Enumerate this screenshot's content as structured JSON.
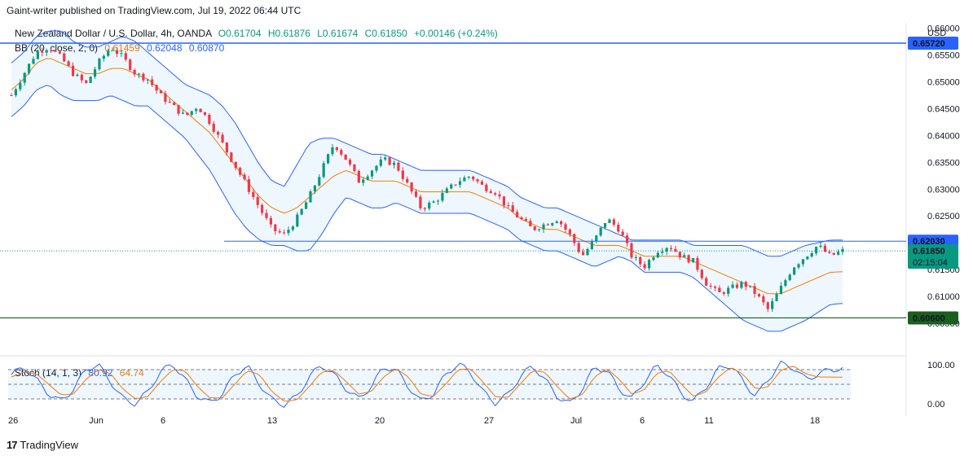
{
  "header": {
    "published": "Gaint-writer published on TradingView.com, Jul 19, 2022 06:44 UTC"
  },
  "symbol_line": {
    "name": "New Zealand Dollar / U.S. Dollar, 4h, OANDA",
    "open": "O0.61704",
    "high": "H0.61876",
    "low": "L0.61674",
    "close": "C0.61850",
    "change": "+0.00146 (+0.24%)"
  },
  "bb_line": {
    "label": "BB (20, close, 2, 0)",
    "basis": "0.61459",
    "upper": "0.62048",
    "lower": "0.60870"
  },
  "stoch_line": {
    "label": "Stoch (14, 1, 3)",
    "k": "80.92",
    "d": "64.74"
  },
  "footer": {
    "brand": "TradingView",
    "logo": "17"
  },
  "colors": {
    "up": "#089981",
    "down": "#f23645",
    "bb_band": "#2962ff",
    "bb_basis": "#f57c00",
    "level_line": "#2962ff",
    "support_line": "#1b5e20",
    "price_tag": "#089981"
  },
  "chart_data": [
    {
      "type": "candlestick",
      "title": "New Zealand Dollar / U.S. Dollar, 4h, OANDA",
      "currency": "USD",
      "ylim": [
        0.6,
        0.661
      ],
      "y_ticks": [
        "0.66000",
        "0.65500",
        "0.65000",
        "0.64500",
        "0.64000",
        "0.63500",
        "0.63000",
        "0.62500",
        "0.61500",
        "0.61000",
        "0.60500"
      ],
      "x_tick_labels": [
        "26",
        "Jun",
        "6",
        "13",
        "20",
        "27",
        "Jul",
        "6",
        "11",
        "18"
      ],
      "levels": [
        {
          "value": 0.6572,
          "label": "0.65720",
          "color": "#2962ff"
        },
        {
          "value": 0.6203,
          "label": "0.62030",
          "color": "#2962ff"
        },
        {
          "value": 0.606,
          "label": "0.60600",
          "color": "#1b5e20"
        }
      ],
      "last_price": {
        "value": 0.6185,
        "label": "0.61850",
        "countdown": "02:15:04"
      },
      "close_path": [
        0.6475,
        0.6515,
        0.6555,
        0.6565,
        0.6545,
        0.6515,
        0.6495,
        0.6535,
        0.6565,
        0.6545,
        0.6515,
        0.6505,
        0.6475,
        0.6455,
        0.6435,
        0.6455,
        0.6425,
        0.6385,
        0.6345,
        0.6305,
        0.6265,
        0.6225,
        0.6215,
        0.6245,
        0.6285,
        0.6335,
        0.6385,
        0.6355,
        0.6315,
        0.6335,
        0.6355,
        0.6345,
        0.6305,
        0.6265,
        0.6275,
        0.6295,
        0.6315,
        0.6325,
        0.6305,
        0.6295,
        0.6265,
        0.6245,
        0.6225,
        0.6235,
        0.6245,
        0.6215,
        0.6175,
        0.6205,
        0.6245,
        0.6225,
        0.6175,
        0.6155,
        0.6185,
        0.6195,
        0.6175,
        0.6165,
        0.6125,
        0.6105,
        0.6115,
        0.6125,
        0.6105,
        0.6075,
        0.6115,
        0.6155,
        0.6175,
        0.6195,
        0.6175,
        0.6185
      ],
      "basis_path": [
        0.6485,
        0.6505,
        0.6535,
        0.6545,
        0.6535,
        0.6525,
        0.6515,
        0.6515,
        0.6525,
        0.6525,
        0.6515,
        0.6505,
        0.6485,
        0.6465,
        0.6445,
        0.6425,
        0.6405,
        0.6375,
        0.6345,
        0.6315,
        0.6285,
        0.6265,
        0.6255,
        0.6265,
        0.6285,
        0.6305,
        0.6325,
        0.6335,
        0.6325,
        0.6315,
        0.6315,
        0.6315,
        0.6305,
        0.6295,
        0.6295,
        0.6295,
        0.6295,
        0.6295,
        0.6285,
        0.6275,
        0.6265,
        0.6245,
        0.6235,
        0.6225,
        0.6225,
        0.6215,
        0.6205,
        0.6195,
        0.6195,
        0.6195,
        0.6185,
        0.6175,
        0.6175,
        0.6175,
        0.6175,
        0.6165,
        0.6155,
        0.6145,
        0.6135,
        0.6125,
        0.6115,
        0.6105,
        0.6105,
        0.6115,
        0.6125,
        0.6135,
        0.6145,
        0.6146
      ],
      "upper_path": [
        0.6535,
        0.6555,
        0.6585,
        0.6595,
        0.6595,
        0.6575,
        0.6565,
        0.6565,
        0.6575,
        0.6585,
        0.6575,
        0.6555,
        0.6535,
        0.6515,
        0.6495,
        0.6485,
        0.6475,
        0.6455,
        0.6425,
        0.6385,
        0.6345,
        0.6315,
        0.6305,
        0.6345,
        0.6385,
        0.6395,
        0.6395,
        0.6385,
        0.6375,
        0.6365,
        0.6365,
        0.6355,
        0.6345,
        0.6335,
        0.6335,
        0.6335,
        0.6335,
        0.6335,
        0.6325,
        0.6315,
        0.6305,
        0.6285,
        0.6275,
        0.6265,
        0.6265,
        0.6255,
        0.6245,
        0.6235,
        0.6225,
        0.6215,
        0.6205,
        0.6205,
        0.6205,
        0.6205,
        0.6205,
        0.6195,
        0.6195,
        0.6195,
        0.6195,
        0.6195,
        0.6185,
        0.6175,
        0.6175,
        0.6185,
        0.6195,
        0.62,
        0.6205,
        0.6205
      ],
      "lower_path": [
        0.6435,
        0.6455,
        0.6485,
        0.6495,
        0.6475,
        0.6465,
        0.6465,
        0.6465,
        0.6475,
        0.6465,
        0.6455,
        0.6455,
        0.6435,
        0.6415,
        0.6395,
        0.6365,
        0.6335,
        0.6295,
        0.6255,
        0.6225,
        0.6205,
        0.6195,
        0.6195,
        0.6185,
        0.6185,
        0.6215,
        0.6255,
        0.6285,
        0.6275,
        0.6265,
        0.6265,
        0.6275,
        0.6265,
        0.6255,
        0.6255,
        0.6255,
        0.6255,
        0.6255,
        0.6245,
        0.6235,
        0.6225,
        0.6205,
        0.6195,
        0.6185,
        0.6185,
        0.6175,
        0.6165,
        0.6155,
        0.6165,
        0.6175,
        0.6165,
        0.6145,
        0.6145,
        0.6145,
        0.6145,
        0.6135,
        0.6115,
        0.6095,
        0.6075,
        0.6055,
        0.6045,
        0.6035,
        0.6035,
        0.6045,
        0.6055,
        0.607,
        0.6085,
        0.6087
      ]
    },
    {
      "type": "line",
      "title": "Stoch (14, 1, 3)",
      "ylim": [
        0,
        100
      ],
      "y_ticks": [
        "100.00",
        "0.00"
      ],
      "bands": [
        80,
        50,
        20
      ],
      "series": [
        {
          "name": "80.92",
          "color": "#2962ff"
        },
        {
          "name": "64.74",
          "color": "#f57c00"
        }
      ],
      "k_path": [
        70,
        85,
        60,
        30,
        15,
        40,
        80,
        90,
        55,
        20,
        10,
        35,
        75,
        92,
        60,
        25,
        12,
        30,
        70,
        88,
        50,
        18,
        8,
        25,
        65,
        90,
        70,
        40,
        20,
        45,
        85,
        80,
        45,
        15,
        30,
        70,
        92,
        75,
        35,
        12,
        28,
        65,
        88,
        60,
        25,
        10,
        40,
        85,
        78,
        40,
        20,
        55,
        88,
        70,
        30,
        15,
        45,
        82,
        90,
        55,
        25,
        60,
        92,
        85,
        60,
        70,
        80.92,
        80.92
      ],
      "d_path": [
        65,
        75,
        72,
        50,
        28,
        30,
        60,
        80,
        72,
        40,
        20,
        25,
        55,
        80,
        78,
        45,
        22,
        22,
        50,
        78,
        70,
        35,
        15,
        18,
        45,
        75,
        78,
        55,
        30,
        35,
        65,
        82,
        65,
        30,
        25,
        50,
        80,
        82,
        55,
        25,
        22,
        50,
        78,
        75,
        45,
        20,
        28,
        65,
        82,
        60,
        30,
        38,
        72,
        78,
        50,
        25,
        35,
        65,
        85,
        70,
        40,
        45,
        78,
        88,
        72,
        65,
        64.74,
        64.74
      ]
    }
  ]
}
